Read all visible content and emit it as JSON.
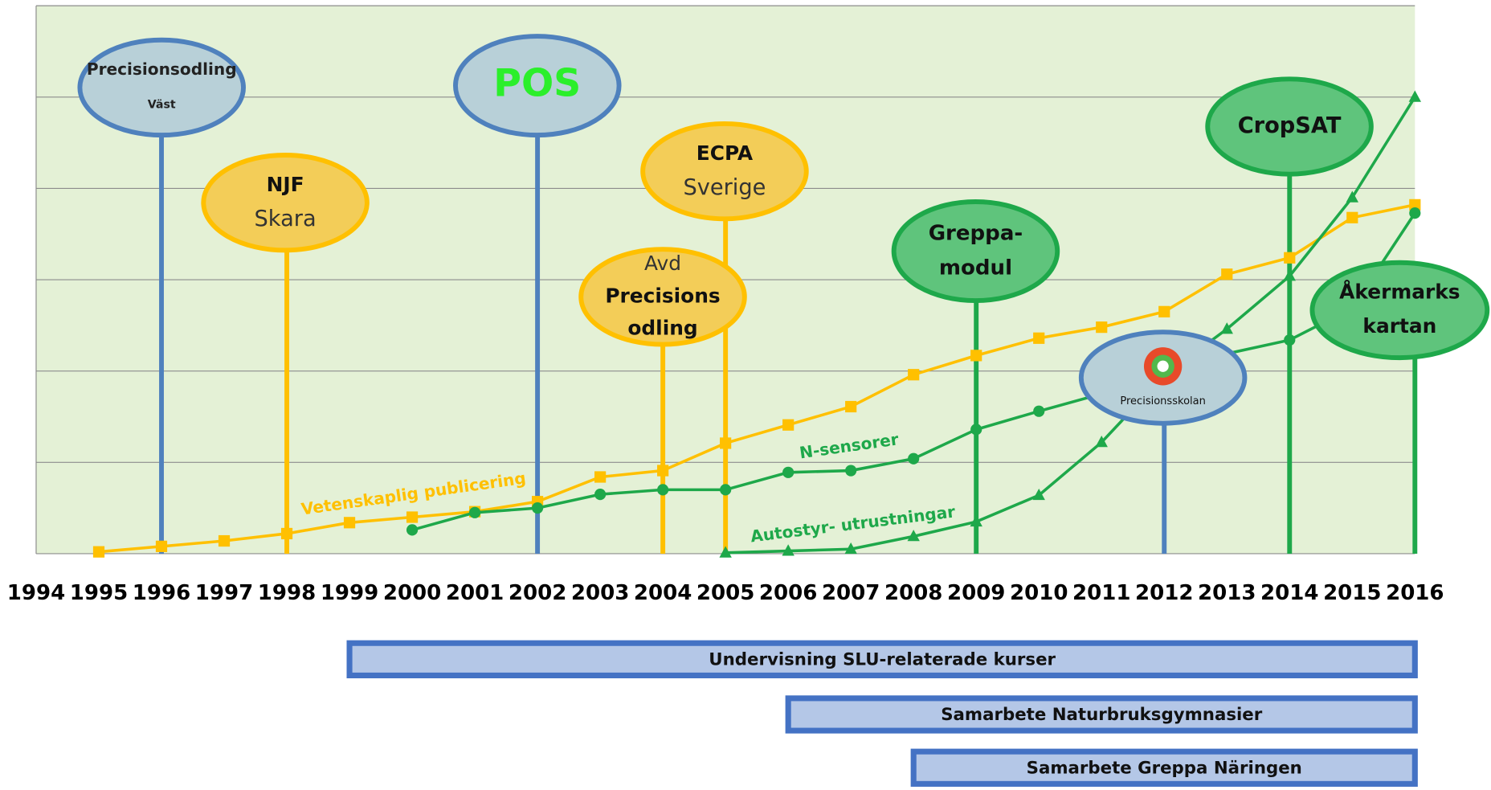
{
  "chart_data": {
    "type": "line",
    "xlim": [
      1994,
      2016
    ],
    "xticks": [
      1994,
      1995,
      1996,
      1997,
      1998,
      1999,
      2000,
      2001,
      2002,
      2003,
      2004,
      2005,
      2006,
      2007,
      2008,
      2009,
      2010,
      2011,
      2012,
      2013,
      2014,
      2015,
      2016
    ],
    "ylim": [
      0,
      6
    ],
    "yticks": [
      0,
      1,
      2,
      3,
      4,
      5,
      6
    ],
    "grid": true,
    "series": [
      {
        "name": "Vetenskaplig publicering",
        "color": "#ffc000",
        "marker": "square",
        "x": [
          1995,
          1996,
          1997,
          1998,
          1999,
          2000,
          2001,
          2002,
          2003,
          2004,
          2005,
          2006,
          2007,
          2008,
          2009,
          2010,
          2011,
          2012,
          2013,
          2014,
          2015,
          2016
        ],
        "values": [
          0.02,
          0.08,
          0.14,
          0.22,
          0.34,
          0.4,
          0.46,
          0.57,
          0.84,
          0.91,
          1.21,
          1.41,
          1.61,
          1.96,
          2.17,
          2.36,
          2.48,
          2.65,
          3.06,
          3.24,
          3.68,
          3.82
        ]
      },
      {
        "name": "N-sensorer",
        "color": "#1ea84a",
        "marker": "circle",
        "x": [
          2000,
          2001,
          2002,
          2003,
          2004,
          2005,
          2006,
          2007,
          2008,
          2009,
          2010,
          2011,
          2012,
          2013,
          2014,
          2015,
          2016
        ],
        "values": [
          0.26,
          0.45,
          0.5,
          0.65,
          0.7,
          0.7,
          0.89,
          0.91,
          1.04,
          1.36,
          1.56,
          1.75,
          1.92,
          2.19,
          2.34,
          2.69,
          3.73
        ]
      },
      {
        "name": "Autostyr- utrustningar",
        "color": "#1ea84a",
        "marker": "triangle",
        "x": [
          2005,
          2006,
          2007,
          2008,
          2009,
          2010,
          2011,
          2012,
          2013,
          2014,
          2015,
          2016
        ],
        "values": [
          0.01,
          0.03,
          0.05,
          0.19,
          0.35,
          0.64,
          1.22,
          1.95,
          2.46,
          3.04,
          3.9,
          5.0
        ]
      }
    ],
    "milestones": [
      {
        "year": 1996,
        "label": [
          "Precisionsodling",
          "Väst"
        ],
        "color": "#4f81bd"
      },
      {
        "year": 1998,
        "label": [
          "NJF",
          "Skara"
        ],
        "color": "#ffc000"
      },
      {
        "year": 2002,
        "label": [
          "POS"
        ],
        "color": "#4f81bd"
      },
      {
        "year": 2004,
        "label": [
          "Avd",
          "Precisions",
          "odling"
        ],
        "color": "#ffc000"
      },
      {
        "year": 2005,
        "label": [
          "ECPA",
          "Sverige"
        ],
        "color": "#ffc000"
      },
      {
        "year": 2009,
        "label": [
          "Greppa-",
          "modul"
        ],
        "color": "#1ea84a"
      },
      {
        "year": 2012,
        "label": [
          "Precisionsskolan"
        ],
        "color": "#4f81bd"
      },
      {
        "year": 2014,
        "label": [
          "CropSAT"
        ],
        "color": "#1ea84a"
      },
      {
        "year": 2016,
        "label": [
          "Åkermarks",
          "kartan"
        ],
        "color": "#1ea84a"
      }
    ],
    "periods": [
      {
        "label": "Undervisning SLU-relaterade kurser",
        "start": 1999,
        "end": 2016
      },
      {
        "label": "Samarbete Naturbruksgymnasier",
        "start": 2006,
        "end": 2016
      },
      {
        "label": "Samarbete Greppa Näringen",
        "start": 2008,
        "end": 2016
      }
    ]
  }
}
